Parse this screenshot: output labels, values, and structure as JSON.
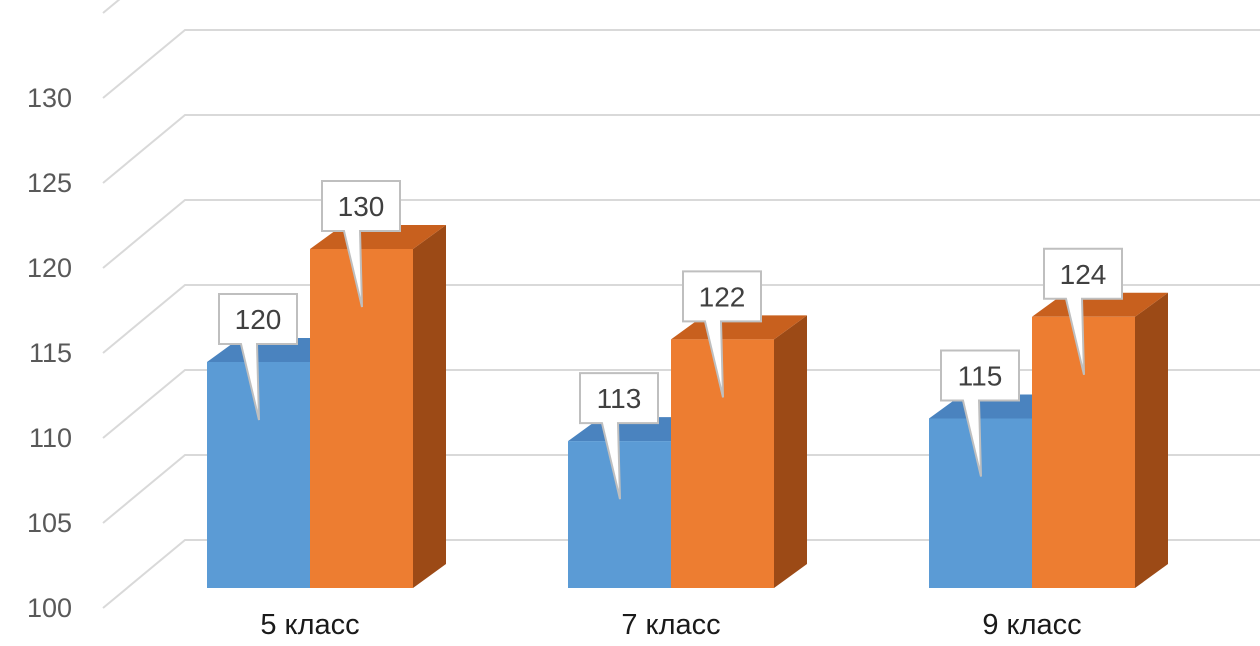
{
  "chart_data": {
    "type": "bar",
    "style": "3d-clustered-column",
    "title": "",
    "xlabel": "",
    "ylabel": "",
    "categories": [
      "5 класс",
      "7 класс",
      "9 класс"
    ],
    "series": [
      {
        "values": [
          120,
          113,
          115
        ],
        "color": "#5b9bd5",
        "side_color": "#2e6aa6",
        "top_color": "#4a83bf"
      },
      {
        "values": [
          130,
          122,
          124
        ],
        "color": "#ed7d31",
        "side_color": "#9c4a16",
        "top_color": "#c8601e"
      }
    ],
    "ylim": [
      100,
      130
    ],
    "yticks": [
      "100",
      "105",
      "110",
      "115",
      "120",
      "125",
      "130"
    ],
    "grid": true,
    "legend": "none",
    "data_labels": true,
    "gridline_color": "#d9d9d9",
    "callout_border_color": "#bfbfbf"
  }
}
